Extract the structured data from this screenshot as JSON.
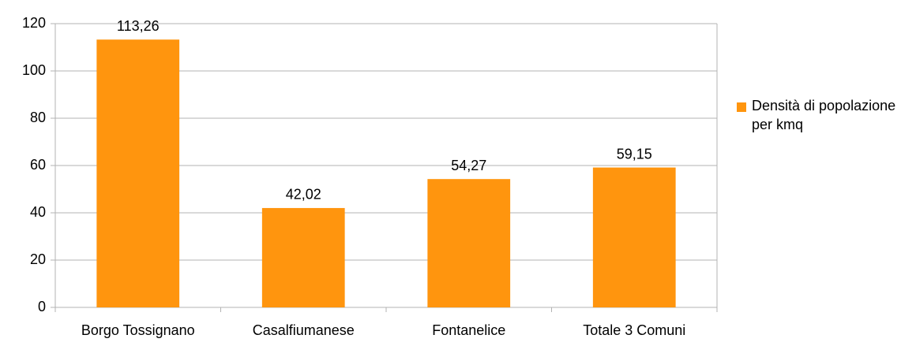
{
  "chart_data": {
    "type": "bar",
    "categories": [
      "Borgo Tossignano",
      "Casalfiumanese",
      "Fontanelice",
      "Totale 3 Comuni"
    ],
    "series": [
      {
        "name": "Densità di popolazione per kmq",
        "color": "#ff950e",
        "values": [
          113.26,
          42.02,
          54.27,
          59.15
        ],
        "value_labels": [
          "113,26",
          "42,02",
          "54,27",
          "59,15"
        ]
      }
    ],
    "ylim": [
      0,
      120
    ],
    "yticks": [
      0,
      20,
      40,
      60,
      80,
      100,
      120
    ],
    "grid": true,
    "legend": "right"
  }
}
